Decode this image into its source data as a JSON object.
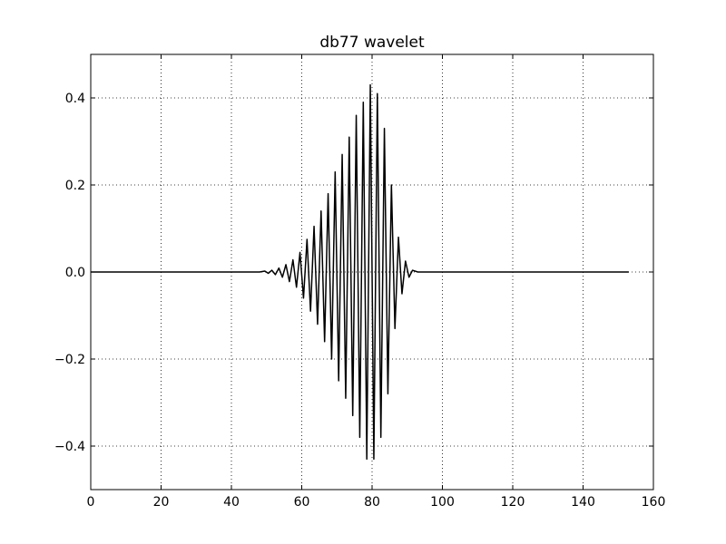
{
  "chart_data": {
    "type": "line",
    "title": "db77 wavelet",
    "xlabel": "",
    "ylabel": "",
    "xlim": [
      0,
      160
    ],
    "ylim": [
      -0.5,
      0.5
    ],
    "xticks": [
      0,
      20,
      40,
      60,
      80,
      100,
      120,
      140,
      160
    ],
    "yticks": [
      0.4,
      0.2,
      0.0,
      -0.2,
      -0.4
    ],
    "xtick_labels": [
      "0",
      "20",
      "40",
      "60",
      "80",
      "100",
      "120",
      "140",
      "160"
    ],
    "ytick_labels": [
      "0.4",
      "0.2",
      "0.0",
      "−0.2",
      "−0.4"
    ],
    "grid": true,
    "legend": "none",
    "line_color": "#000000",
    "series": [
      {
        "x": [
          0,
          48,
          49.5,
          50.5,
          51.5,
          52.5,
          53.5,
          54.5,
          55.5,
          56.5,
          57.5,
          58.5,
          59.5,
          60.5,
          61.5,
          62.5,
          63.5,
          64.5,
          65.5,
          66.5,
          67.5,
          68.5,
          69.5,
          70.5,
          71.5,
          72.5,
          73.5,
          74.5,
          75.5,
          76.5,
          77.5,
          78.5,
          79.5,
          80.5,
          81.5,
          82.5,
          83.5,
          84.5,
          85.5,
          86.5,
          87.5,
          88.5,
          89.5,
          90.5,
          91.5,
          93,
          153
        ],
        "y": [
          0,
          0,
          0.002,
          -0.003,
          0.004,
          -0.006,
          0.009,
          -0.012,
          0.017,
          -0.022,
          0.028,
          -0.035,
          0.045,
          -0.06,
          0.075,
          -0.09,
          0.105,
          -0.12,
          0.14,
          -0.16,
          0.18,
          -0.2,
          0.23,
          -0.25,
          0.27,
          -0.29,
          0.31,
          -0.33,
          0.36,
          -0.38,
          0.39,
          -0.43,
          0.43,
          -0.43,
          0.41,
          -0.38,
          0.33,
          -0.28,
          0.2,
          -0.13,
          0.08,
          -0.05,
          0.025,
          -0.012,
          0.004,
          0,
          0
        ]
      }
    ]
  }
}
